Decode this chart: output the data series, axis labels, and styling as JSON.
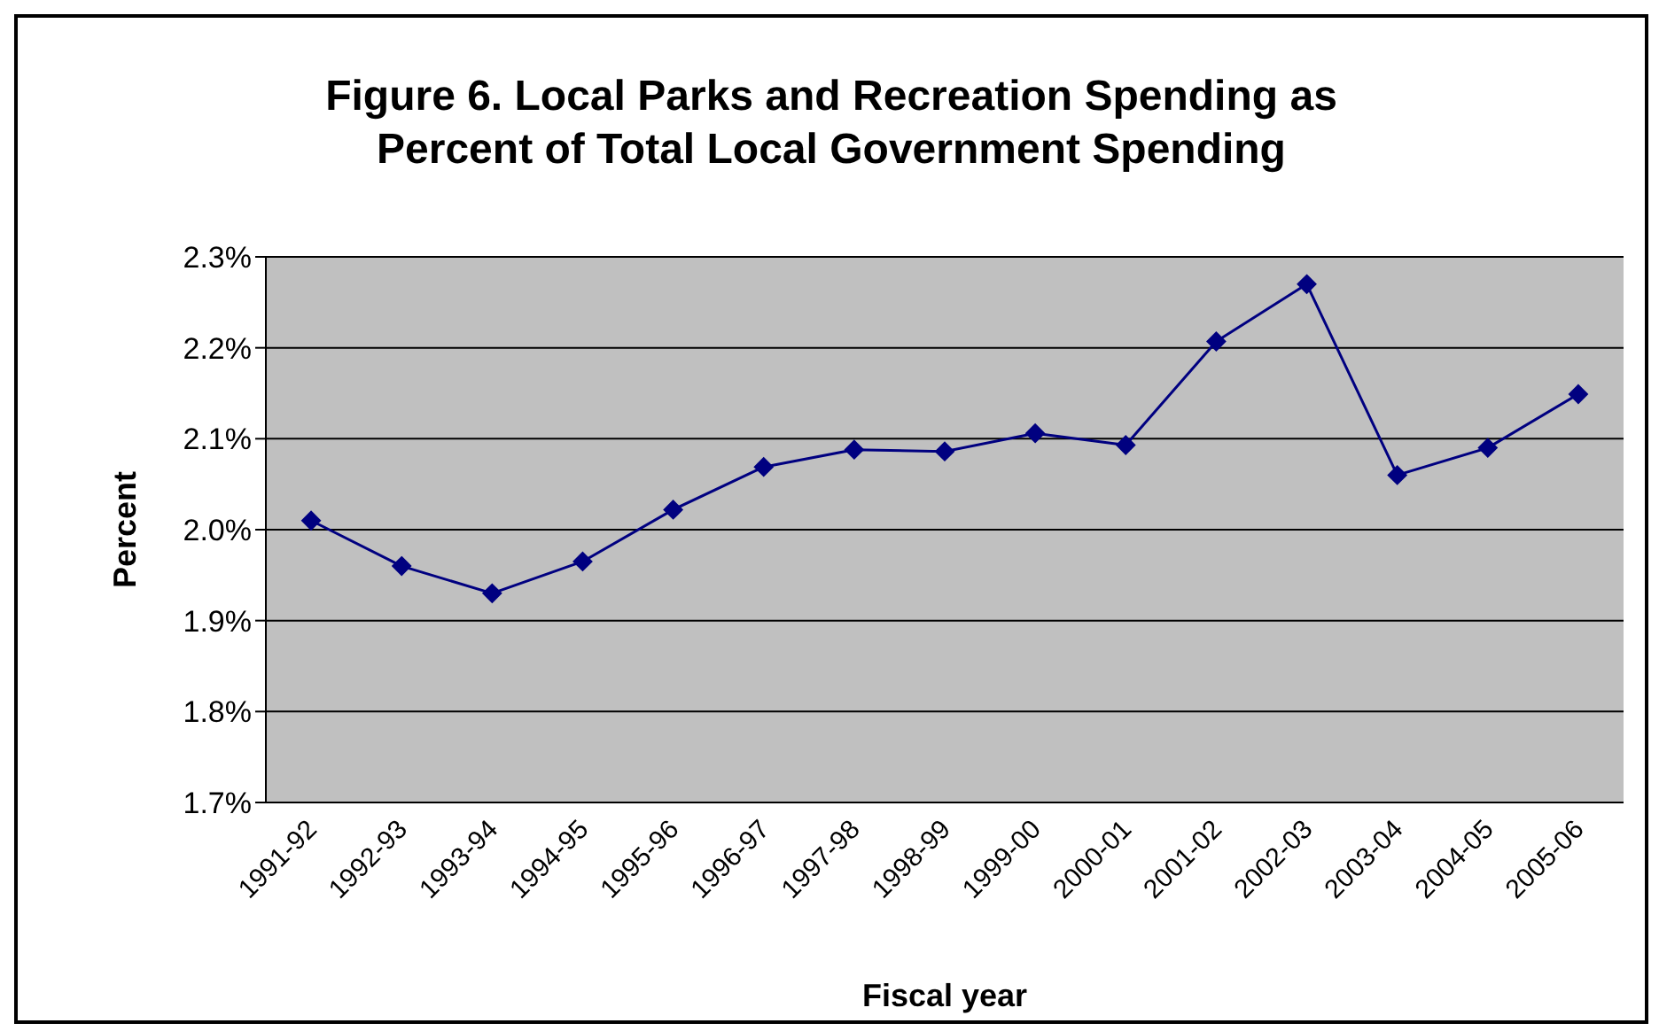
{
  "chart_data": {
    "type": "line",
    "title": "Figure 6. Local Parks and Recreation Spending as\nPercent of Total Local Government Spending",
    "xlabel": "Fiscal year",
    "ylabel": "Percent",
    "categories": [
      "1991-92",
      "1992-93",
      "1993-94",
      "1994-95",
      "1995-96",
      "1996-97",
      "1997-98",
      "1998-99",
      "1999-00",
      "2000-01",
      "2001-02",
      "2002-03",
      "2003-04",
      "2004-05",
      "2005-06"
    ],
    "series": [
      {
        "color": "#000080",
        "values": [
          2.01,
          1.96,
          1.93,
          1.965,
          2.022,
          2.069,
          2.088,
          2.086,
          2.106,
          2.093,
          2.207,
          2.27,
          2.06,
          2.09,
          2.149
        ]
      }
    ],
    "ylim": [
      1.7,
      2.3
    ],
    "yticks": [
      {
        "value": 1.7,
        "label": "1.7%"
      },
      {
        "value": 1.8,
        "label": "1.8%"
      },
      {
        "value": 1.9,
        "label": "1.9%"
      },
      {
        "value": 2.0,
        "label": "2.0%"
      },
      {
        "value": 2.1,
        "label": "2.1%"
      },
      {
        "value": 2.2,
        "label": "2.2%"
      },
      {
        "value": 2.3,
        "label": "2.3%"
      }
    ],
    "grid": "y",
    "legend": false,
    "marker": "diamond",
    "line_style": "solid"
  }
}
